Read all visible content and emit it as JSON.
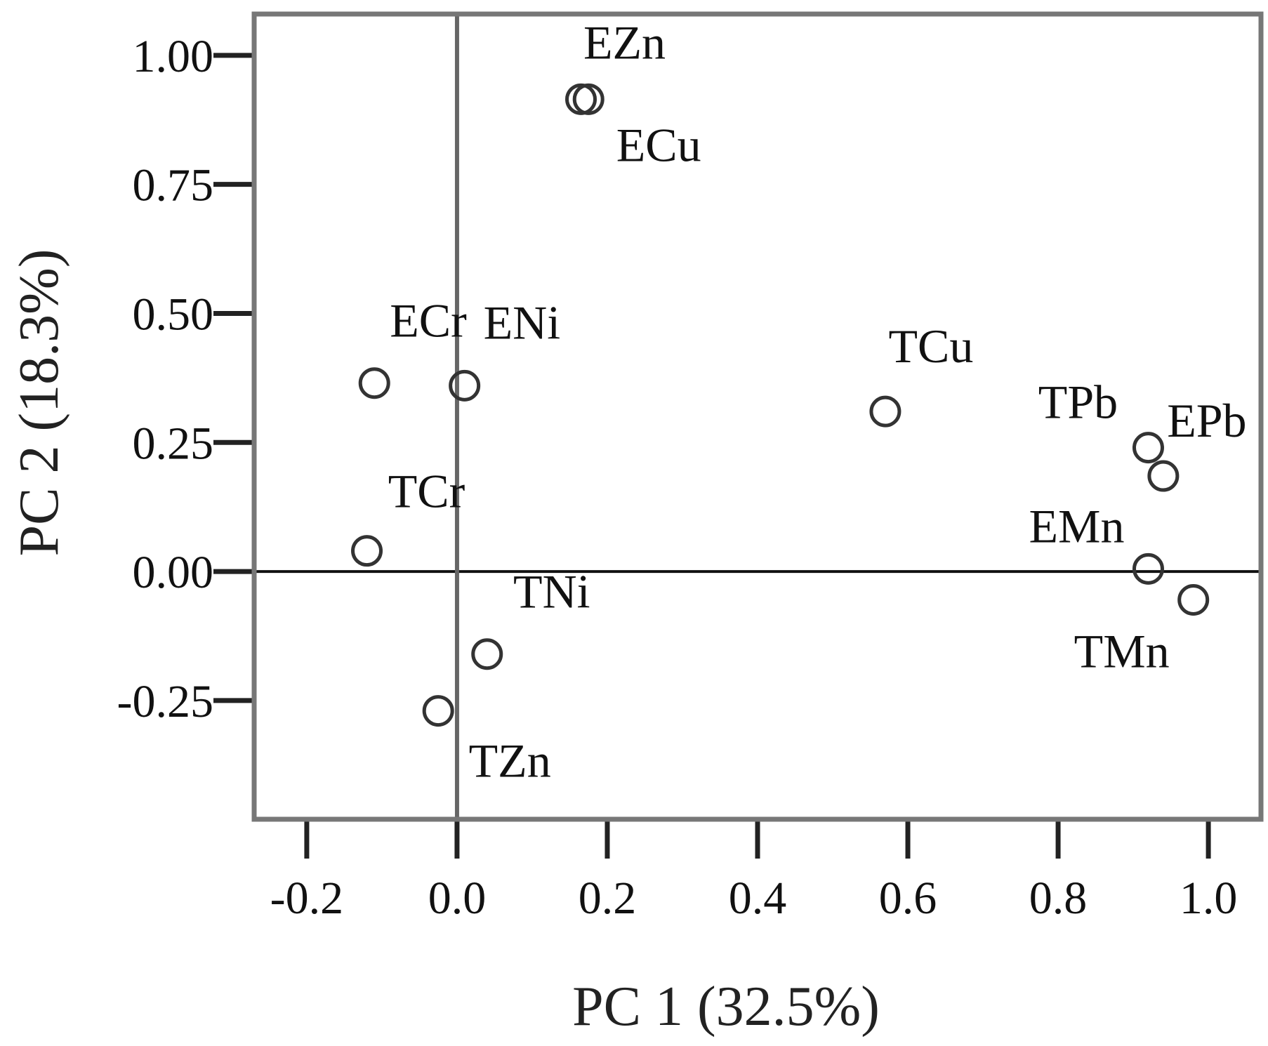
{
  "chart_data": {
    "type": "scatter",
    "title": "",
    "xlabel": "PC 1 (32.5%)",
    "ylabel": "PC 2 (18.3%)",
    "xlim": [
      -0.27,
      1.07
    ],
    "ylim": [
      -0.48,
      1.08
    ],
    "x_ticks": [
      -0.2,
      0.0,
      0.2,
      0.4,
      0.6,
      0.8,
      1.0
    ],
    "x_tick_labels": [
      "-0.2",
      "0.0",
      "0.2",
      "0.4",
      "0.6",
      "0.8",
      "1.0"
    ],
    "y_ticks": [
      -0.25,
      0.0,
      0.25,
      0.5,
      0.75,
      1.0
    ],
    "y_tick_labels": [
      "-0.25",
      "0.00",
      "0.25",
      "0.50",
      "0.75",
      "1.00"
    ],
    "reference_lines": {
      "x": 0.0,
      "y": 0.0
    },
    "grid": false,
    "legend": "none",
    "points": [
      {
        "label": "EZn",
        "x": 0.165,
        "y": 0.915
      },
      {
        "label": "ECu",
        "x": 0.175,
        "y": 0.915
      },
      {
        "label": "ECr",
        "x": -0.11,
        "y": 0.365
      },
      {
        "label": "ENi",
        "x": 0.01,
        "y": 0.36
      },
      {
        "label": "TCu",
        "x": 0.57,
        "y": 0.31
      },
      {
        "label": "TPb",
        "x": 0.92,
        "y": 0.24
      },
      {
        "label": "EPb",
        "x": 0.94,
        "y": 0.185
      },
      {
        "label": "TCr",
        "x": -0.12,
        "y": 0.04
      },
      {
        "label": "EMn",
        "x": 0.92,
        "y": 0.005
      },
      {
        "label": "TMn",
        "x": 0.98,
        "y": -0.055
      },
      {
        "label": "TNi",
        "x": 0.04,
        "y": -0.16
      },
      {
        "label": "TZn",
        "x": -0.025,
        "y": -0.27
      }
    ]
  }
}
